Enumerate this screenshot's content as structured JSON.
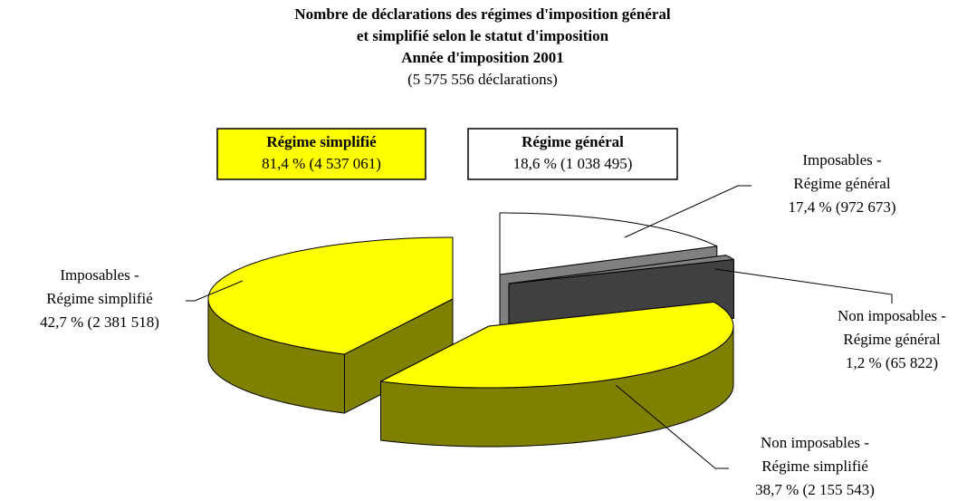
{
  "chart_data": {
    "type": "pie",
    "title": [
      "Nombre de déclarations des régimes d'imposition général",
      "et simplifié selon le statut d'imposition",
      "Année d'imposition 2001"
    ],
    "subtitle": "(5 575 556 déclarations)",
    "categories": [
      [
        "Imposables -",
        "Régime général"
      ],
      [
        "Non imposables -",
        "Régime général"
      ],
      [
        "Non imposables -",
        "Régime simplifié"
      ],
      [
        "Imposables -",
        "Régime simplifié"
      ]
    ],
    "values": [
      17.4,
      1.2,
      38.7,
      42.7
    ],
    "value_labels": [
      "17,4 % (972 673)",
      "1,2 % (65 822)",
      "38,7 % (2 155 543)",
      "42,7 % (2 381 518)"
    ],
    "colors": [
      "#ffffff",
      "#808080",
      "#ffff00",
      "#ffff00"
    ],
    "groups": {
      "names": [
        "Régime simplifié",
        "Régime général"
      ],
      "values": [
        81.4,
        18.6
      ],
      "value_labels": [
        "81,4 % (4 537 061)",
        "18,6 % (1 038 495)"
      ],
      "colors": [
        "#ffff00",
        "#ffffff"
      ]
    }
  }
}
